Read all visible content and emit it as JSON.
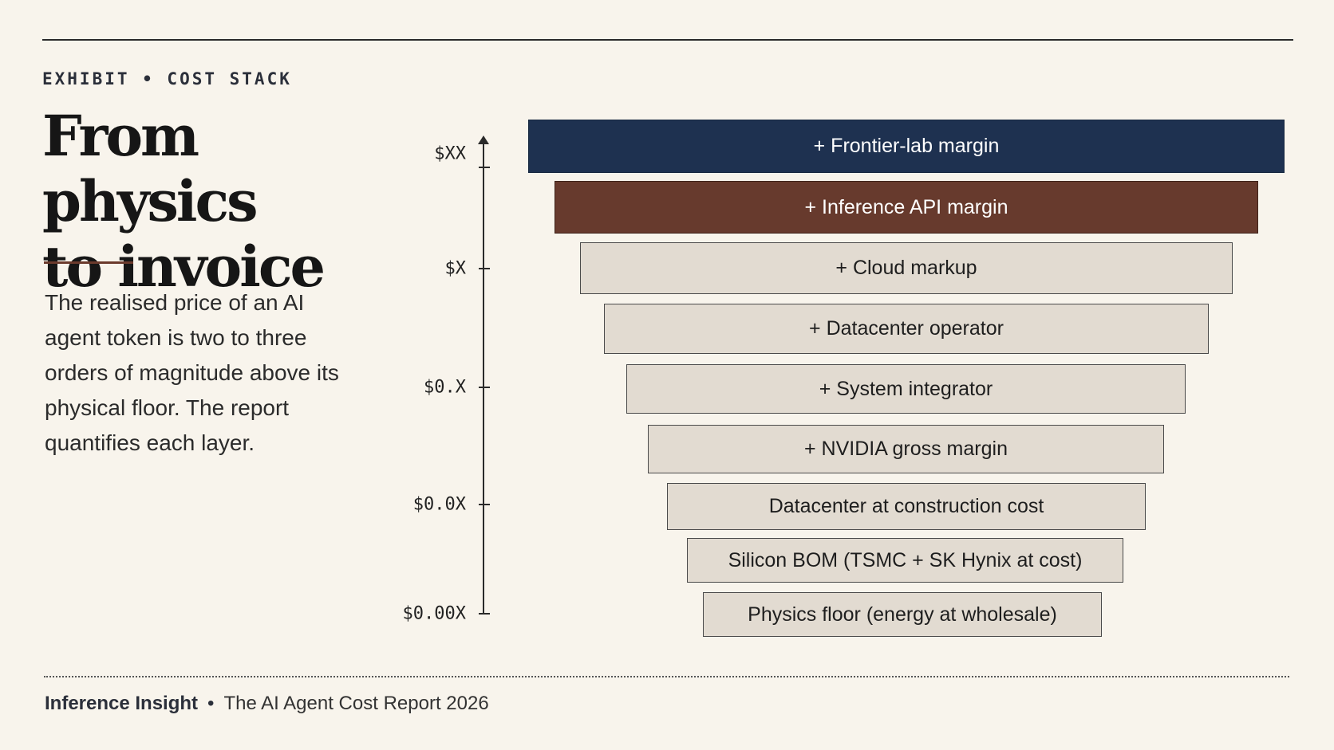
{
  "header": {
    "eyebrow": "EXHIBIT • COST STACK",
    "title_line1": "From physics",
    "title_line2": "to invoice"
  },
  "description": "The realised price of an AI agent token is two to three orders of magnitude above its physical floor. The report quantifies each layer.",
  "axis": {
    "ticks": [
      "$XX",
      "$X",
      "$0.X",
      "$0.0X",
      "$0.00X"
    ]
  },
  "layers": [
    {
      "label": "+ Frontier-lab margin",
      "style": "navy"
    },
    {
      "label": "+ Inference API margin",
      "style": "rust"
    },
    {
      "label": "+ Cloud markup",
      "style": "neutral"
    },
    {
      "label": "+ Datacenter operator",
      "style": "neutral"
    },
    {
      "label": "+ System integrator",
      "style": "neutral"
    },
    {
      "label": "+ NVIDIA gross margin",
      "style": "neutral"
    },
    {
      "label": "Datacenter at construction cost",
      "style": "neutral"
    },
    {
      "label": "Silicon BOM (TSMC + SK Hynix at cost)",
      "style": "neutral"
    },
    {
      "label": "Physics floor (energy at wholesale)",
      "style": "neutral"
    }
  ],
  "colors": {
    "background": "#f8f4ec",
    "navy": "#1e3150",
    "rust": "#673a2d",
    "neutral": "#e2dbd1",
    "accent_rule": "#6b3a2c"
  },
  "footer": {
    "brand": "Inference Insight",
    "separator": "•",
    "report": "The AI Agent Cost Report 2026"
  }
}
